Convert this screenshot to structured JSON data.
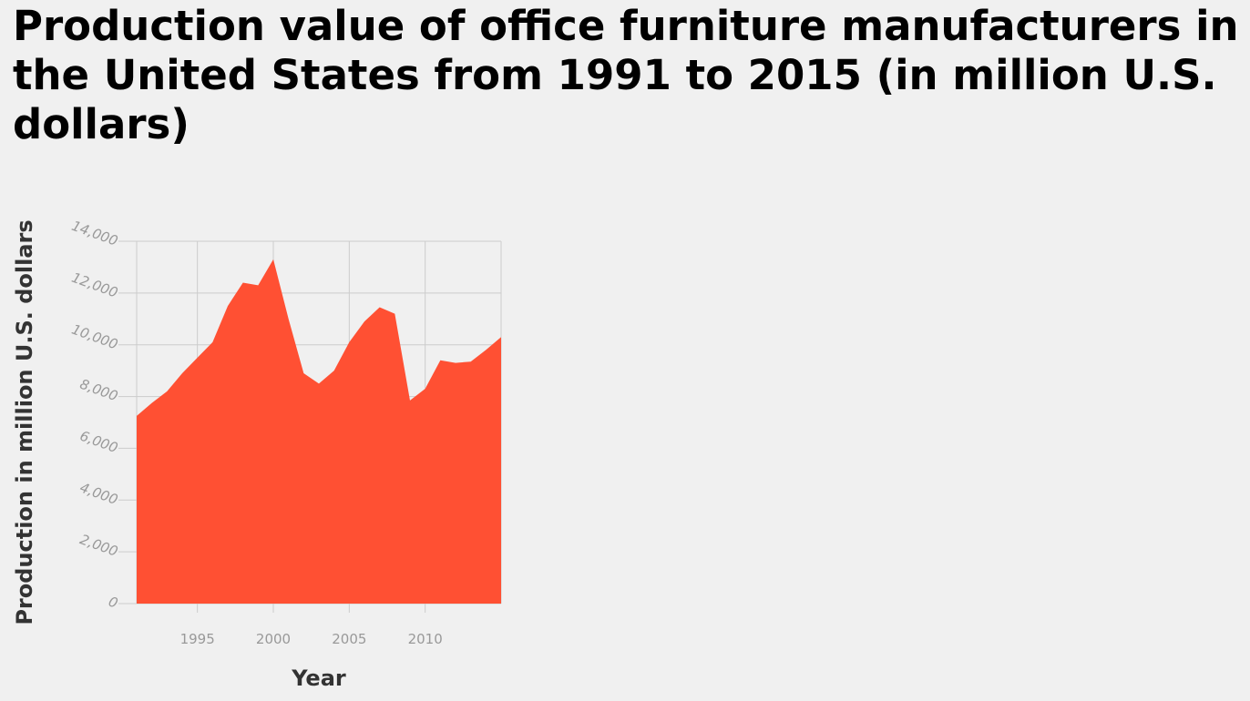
{
  "chart_data": {
    "type": "area",
    "title": "Production value of office furniture manufacturers in the United States from 1991 to 2015 (in million U.S. dollars)",
    "xlabel": "Year",
    "ylabel": "Production in million U.S. dollars",
    "xlim": [
      1991,
      2015
    ],
    "ylim": [
      0,
      14000
    ],
    "x_ticks": [
      1995,
      2000,
      2005,
      2010
    ],
    "x_tick_labels": [
      "1995",
      "2000",
      "2005",
      "2010"
    ],
    "y_ticks": [
      0,
      2000,
      4000,
      6000,
      8000,
      10000,
      12000,
      14000
    ],
    "y_tick_labels": [
      "0",
      "2,000",
      "4,000",
      "6,000",
      "8,000",
      "10,000",
      "12,000",
      "14,000"
    ],
    "grid": true,
    "color": "#ff5033",
    "x": [
      1991,
      1992,
      1993,
      1994,
      1995,
      1996,
      1997,
      1998,
      1999,
      2000,
      2001,
      2002,
      2003,
      2004,
      2005,
      2006,
      2007,
      2008,
      2009,
      2010,
      2011,
      2012,
      2013,
      2014,
      2015
    ],
    "values": [
      7250,
      7750,
      8200,
      8900,
      9500,
      10100,
      11500,
      12400,
      12300,
      13300,
      11000,
      8900,
      8500,
      9000,
      10100,
      10900,
      11450,
      11200,
      7850,
      8300,
      9400,
      9300,
      9350,
      9800,
      10300
    ]
  }
}
